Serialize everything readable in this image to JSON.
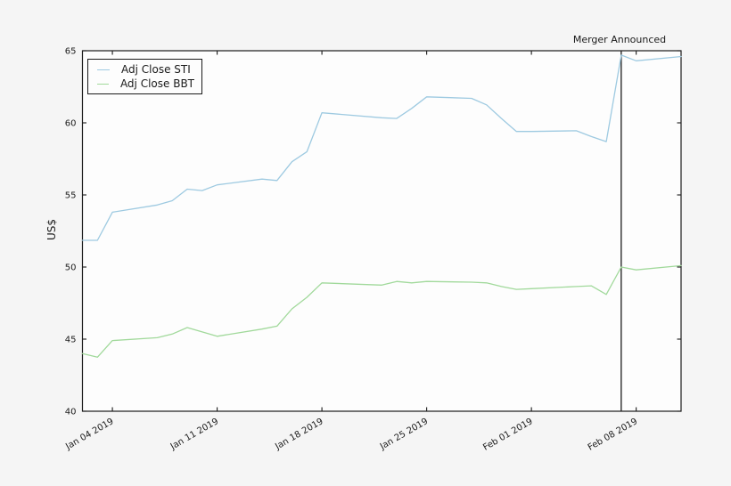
{
  "figure": {
    "background_color": "#f5f5f5",
    "axes_background_color": "#fdfdfd",
    "spine_color": "#1a1a1a"
  },
  "chart_data": {
    "type": "line",
    "title": "",
    "xlabel": "",
    "ylabel": "US$",
    "ylim": [
      40,
      65
    ],
    "yticks": [
      40,
      45,
      50,
      55,
      60,
      65
    ],
    "xlim_days": [
      0,
      40
    ],
    "grid": false,
    "legend_position": "upper-left",
    "x_dates": [
      "Jan 02 2019",
      "Jan 03 2019",
      "Jan 04 2019",
      "Jan 07 2019",
      "Jan 08 2019",
      "Jan 09 2019",
      "Jan 10 2019",
      "Jan 11 2019",
      "Jan 14 2019",
      "Jan 15 2019",
      "Jan 16 2019",
      "Jan 17 2019",
      "Jan 18 2019",
      "Jan 22 2019",
      "Jan 23 2019",
      "Jan 24 2019",
      "Jan 25 2019",
      "Jan 28 2019",
      "Jan 29 2019",
      "Jan 30 2019",
      "Jan 31 2019",
      "Feb 01 2019",
      "Feb 04 2019",
      "Feb 05 2019",
      "Feb 06 2019",
      "Feb 07 2019",
      "Feb 08 2019",
      "Feb 11 2019"
    ],
    "x_day_offsets": [
      0,
      1,
      2,
      5,
      6,
      7,
      8,
      9,
      12,
      13,
      14,
      15,
      16,
      20,
      21,
      22,
      23,
      26,
      27,
      28,
      29,
      30,
      33,
      34,
      35,
      36,
      37,
      40
    ],
    "series": [
      {
        "name": "Adj Close STI",
        "color": "#9ecae1",
        "values": [
          51.85,
          51.85,
          53.8,
          54.3,
          54.6,
          55.4,
          55.3,
          55.7,
          56.1,
          56.0,
          57.3,
          58.0,
          60.7,
          60.35,
          60.3,
          61.0,
          61.8,
          61.7,
          61.25,
          60.3,
          59.4,
          59.4,
          59.45,
          59.05,
          58.7,
          64.7,
          64.3,
          64.6
        ]
      },
      {
        "name": "Adj Close BBT",
        "color": "#a1d99b",
        "values": [
          44.0,
          43.75,
          44.9,
          45.1,
          45.35,
          45.8,
          45.5,
          45.2,
          45.7,
          45.9,
          47.1,
          47.9,
          48.9,
          48.75,
          49.0,
          48.9,
          49.0,
          48.95,
          48.9,
          48.65,
          48.45,
          48.5,
          48.65,
          48.7,
          48.1,
          50.0,
          49.8,
          50.1
        ]
      }
    ],
    "xticks": [
      {
        "label": "Jan 04 2019",
        "day": 2
      },
      {
        "label": "Jan 11 2019",
        "day": 9
      },
      {
        "label": "Jan 18 2019",
        "day": 16
      },
      {
        "label": "Jan 25 2019",
        "day": 23
      },
      {
        "label": "Feb 01 2019",
        "day": 30
      },
      {
        "label": "Feb 08 2019",
        "day": 37
      }
    ],
    "annotation": {
      "label": "Merger Announced",
      "date": "Feb 07 2019",
      "day": 36,
      "line_color": "#1a1a1a"
    }
  }
}
